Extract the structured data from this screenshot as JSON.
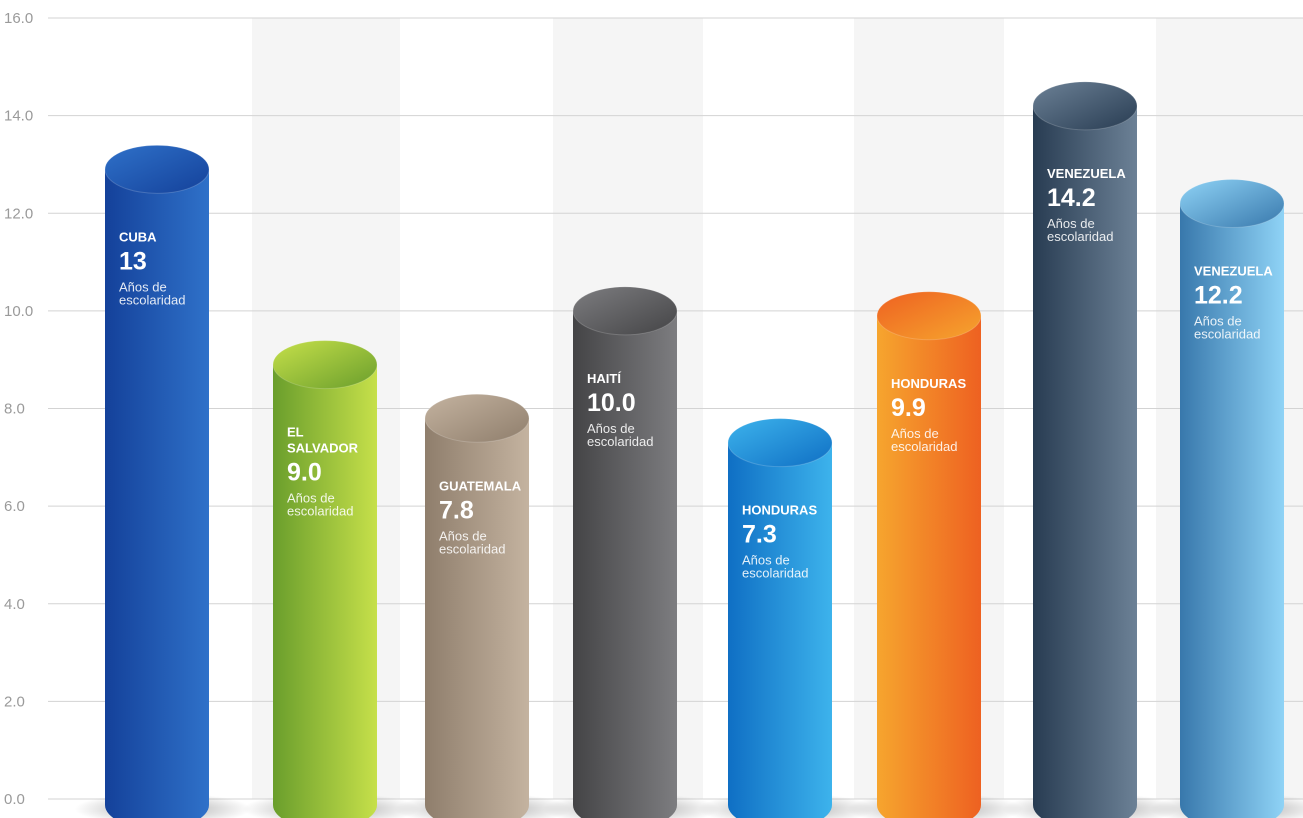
{
  "chart_data": {
    "type": "bar",
    "title": "",
    "xlabel": "",
    "ylabel": "",
    "ylim": [
      0,
      16
    ],
    "yticks": [
      "0.0",
      "2.0",
      "4.0",
      "6.0",
      "8.0",
      "10.0",
      "12.0",
      "14.0",
      "16.0"
    ],
    "grid": true,
    "unit_label": "Años de escolaridad",
    "categories": [
      {
        "name": [
          "CUBA"
        ],
        "label": "13",
        "value": 12.9,
        "colors": [
          "#14419a",
          "#2f71c9"
        ]
      },
      {
        "name": [
          "EL",
          "SALVADOR"
        ],
        "label": "9.0",
        "value": 8.9,
        "colors": [
          "#6a9e2c",
          "#c6e04a"
        ]
      },
      {
        "name": [
          "GUATEMALA"
        ],
        "label": "7.8",
        "value": 7.8,
        "colors": [
          "#8f7e6c",
          "#c4b3a0"
        ]
      },
      {
        "name": [
          "HAITÍ"
        ],
        "label": "10.0",
        "value": 10.0,
        "colors": [
          "#444446",
          "#7d7d80"
        ]
      },
      {
        "name": [
          "HONDURAS"
        ],
        "label": "7.3",
        "value": 7.3,
        "colors": [
          "#0f6fc4",
          "#3db3ec"
        ]
      },
      {
        "name": [
          "HONDURAS"
        ],
        "label": "9.9",
        "value": 9.9,
        "colors": [
          "#f6a52e",
          "#ee6121"
        ]
      },
      {
        "name": [
          "VENEZUELA"
        ],
        "label": "14.2",
        "value": 14.2,
        "colors": [
          "#283c52",
          "#6c8196"
        ]
      },
      {
        "name": [
          "VENEZUELA"
        ],
        "label": "12.2",
        "value": 12.2,
        "colors": [
          "#3878ac",
          "#8fd3f6"
        ]
      }
    ]
  }
}
